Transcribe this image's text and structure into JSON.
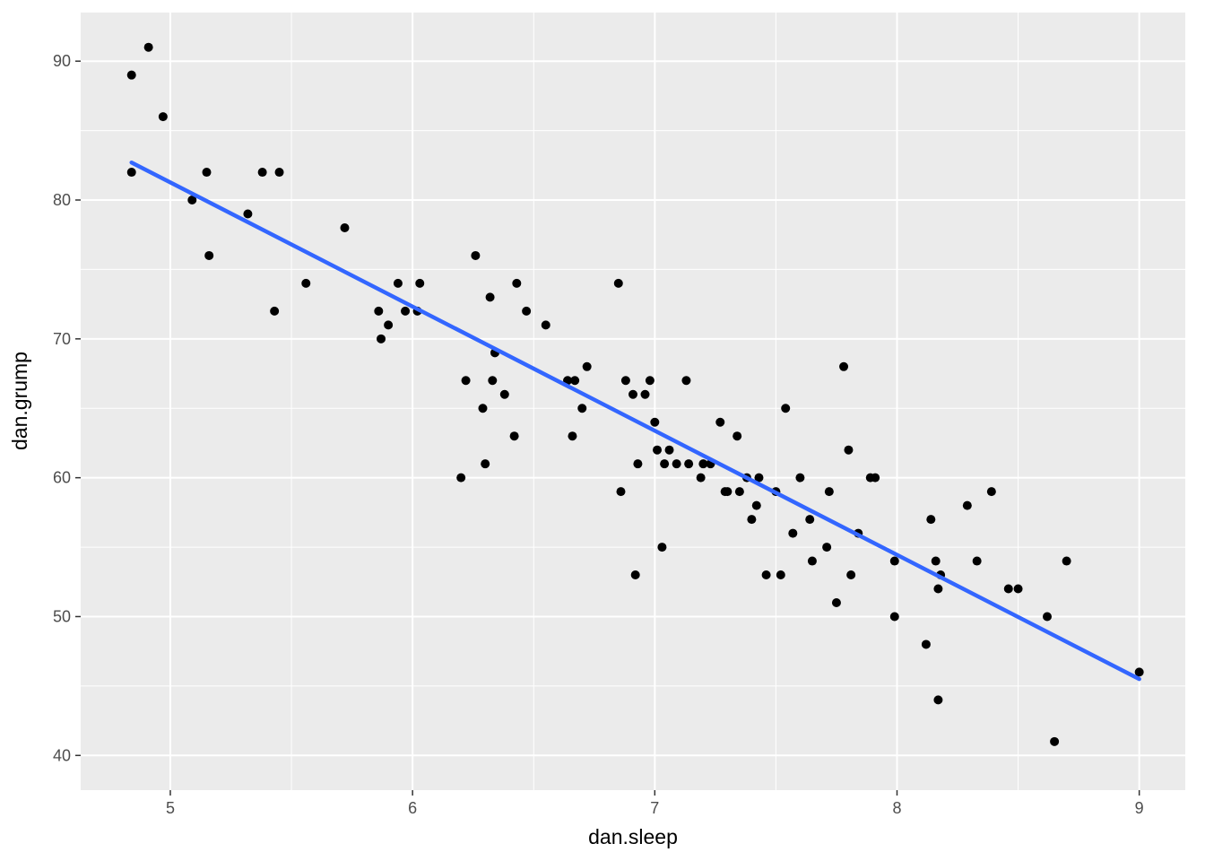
{
  "figure": {
    "background": "#FFFFFF",
    "panel_background": "#EBEBEB",
    "grid_color": "#FFFFFF",
    "point_color": "#000000",
    "line_color": "#3366FF",
    "tick_mark_color": "#333333",
    "tick_label_color": "#4D4D4D",
    "axis_title_color": "#000000"
  },
  "chart_data": {
    "type": "scatter",
    "title": "",
    "xlabel": "dan.sleep",
    "ylabel": "dan.grump",
    "xlim": [
      4.63,
      9.19
    ],
    "ylim": [
      37.5,
      93.5
    ],
    "x_major_ticks": [
      5,
      6,
      7,
      8,
      9
    ],
    "x_minor_ticks": [
      5.5,
      6.5,
      7.5,
      8.5
    ],
    "y_major_ticks": [
      40,
      50,
      60,
      70,
      80,
      90
    ],
    "y_minor_ticks": [
      45,
      55,
      65,
      75,
      85
    ],
    "grid": true,
    "legend": "none",
    "regression_line": {
      "x1": 4.84,
      "y1": 82.7,
      "x2": 9.0,
      "y2": 45.5
    },
    "points": [
      [
        4.84,
        82
      ],
      [
        4.84,
        89
      ],
      [
        4.91,
        91
      ],
      [
        4.97,
        86
      ],
      [
        5.09,
        80
      ],
      [
        5.15,
        82
      ],
      [
        5.16,
        76
      ],
      [
        5.32,
        79
      ],
      [
        5.38,
        82
      ],
      [
        5.45,
        82
      ],
      [
        5.43,
        72
      ],
      [
        5.56,
        74
      ],
      [
        5.72,
        78
      ],
      [
        5.86,
        72
      ],
      [
        5.87,
        70
      ],
      [
        5.9,
        71
      ],
      [
        5.94,
        74
      ],
      [
        5.97,
        72
      ],
      [
        6.03,
        74
      ],
      [
        6.02,
        72
      ],
      [
        6.2,
        60
      ],
      [
        6.22,
        67
      ],
      [
        6.26,
        76
      ],
      [
        6.29,
        65
      ],
      [
        6.3,
        61
      ],
      [
        6.32,
        73
      ],
      [
        6.33,
        67
      ],
      [
        6.34,
        69
      ],
      [
        6.38,
        66
      ],
      [
        6.42,
        63
      ],
      [
        6.43,
        74
      ],
      [
        6.47,
        72
      ],
      [
        6.55,
        71
      ],
      [
        6.64,
        67
      ],
      [
        6.66,
        63
      ],
      [
        6.67,
        67
      ],
      [
        6.7,
        65
      ],
      [
        6.72,
        68
      ],
      [
        6.85,
        74
      ],
      [
        6.86,
        59
      ],
      [
        6.88,
        67
      ],
      [
        6.91,
        66
      ],
      [
        6.92,
        53
      ],
      [
        6.93,
        61
      ],
      [
        6.96,
        66
      ],
      [
        6.98,
        67
      ],
      [
        7.0,
        64
      ],
      [
        7.01,
        62
      ],
      [
        7.03,
        55
      ],
      [
        7.04,
        61
      ],
      [
        7.06,
        62
      ],
      [
        7.09,
        61
      ],
      [
        7.13,
        67
      ],
      [
        7.14,
        61
      ],
      [
        7.19,
        60
      ],
      [
        7.2,
        61
      ],
      [
        7.23,
        61
      ],
      [
        7.27,
        64
      ],
      [
        7.29,
        59
      ],
      [
        7.3,
        59
      ],
      [
        7.34,
        63
      ],
      [
        7.35,
        59
      ],
      [
        7.38,
        60
      ],
      [
        7.4,
        57
      ],
      [
        7.42,
        58
      ],
      [
        7.43,
        60
      ],
      [
        7.46,
        53
      ],
      [
        7.5,
        59
      ],
      [
        7.52,
        53
      ],
      [
        7.54,
        65
      ],
      [
        7.57,
        56
      ],
      [
        7.6,
        60
      ],
      [
        7.64,
        57
      ],
      [
        7.65,
        54
      ],
      [
        7.71,
        55
      ],
      [
        7.72,
        59
      ],
      [
        7.75,
        51
      ],
      [
        7.78,
        68
      ],
      [
        7.8,
        62
      ],
      [
        7.81,
        53
      ],
      [
        7.84,
        56
      ],
      [
        7.89,
        60
      ],
      [
        7.91,
        60
      ],
      [
        7.99,
        54
      ],
      [
        7.99,
        50
      ],
      [
        8.12,
        48
      ],
      [
        8.14,
        57
      ],
      [
        8.16,
        54
      ],
      [
        8.17,
        52
      ],
      [
        8.18,
        53
      ],
      [
        8.17,
        44
      ],
      [
        8.29,
        58
      ],
      [
        8.33,
        54
      ],
      [
        8.39,
        59
      ],
      [
        8.46,
        52
      ],
      [
        8.5,
        52
      ],
      [
        8.62,
        50
      ],
      [
        8.65,
        41
      ],
      [
        8.7,
        54
      ],
      [
        9.0,
        46
      ]
    ]
  }
}
